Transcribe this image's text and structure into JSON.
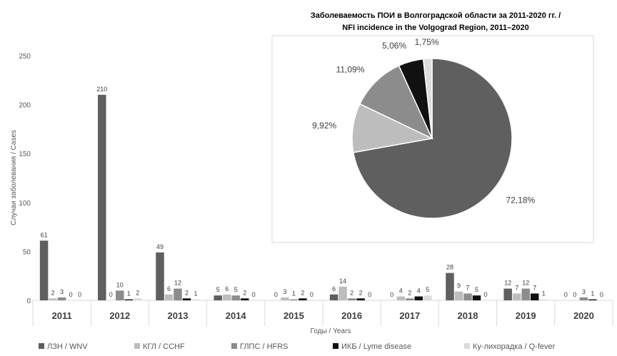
{
  "chart_data": [
    {
      "type": "bar",
      "categories": [
        "2011",
        "2012",
        "2013",
        "2014",
        "2015",
        "2016",
        "2017",
        "2018",
        "2019",
        "2020"
      ],
      "series": [
        {
          "name": "ЛЗН / WNV",
          "color": "#5f5f5f",
          "values": [
            61,
            210,
            49,
            5,
            0,
            6,
            0,
            28,
            12,
            0
          ]
        },
        {
          "name": "КГЛ / CCHF",
          "color": "#bdbdbd",
          "values": [
            2,
            0,
            6,
            6,
            3,
            14,
            4,
            9,
            7,
            0
          ]
        },
        {
          "name": "ГЛПС / HFRS",
          "color": "#8c8c8c",
          "values": [
            3,
            10,
            12,
            5,
            1,
            2,
            2,
            7,
            12,
            3
          ]
        },
        {
          "name": "ИКБ / Lyme disease",
          "color": "#111111",
          "values": [
            0,
            1,
            2,
            2,
            2,
            2,
            4,
            5,
            7,
            1
          ]
        },
        {
          "name": "Ку-лихорадка / Q-fever",
          "color": "#dcdcdc",
          "values": [
            0,
            2,
            1,
            0,
            0,
            0,
            5,
            0,
            1,
            0
          ]
        }
      ],
      "xlabel": "Годы / Years",
      "ylabel": "Случаи заболевания / Cases",
      "ylim": [
        0,
        250
      ],
      "yticks": [
        0,
        50,
        100,
        150,
        200,
        250
      ],
      "grid": false,
      "legend": "bottom"
    },
    {
      "type": "pie",
      "title": "Заболеваемость ПОИ в Волгоградской области за 2011-2020 гг. /",
      "subtitle": "NFI incidence in the Volgograd Region, 2011–2020",
      "slices": [
        {
          "series": "ЛЗН / WNV",
          "value": 72.18,
          "label": "72,18%",
          "color": "#5f5f5f"
        },
        {
          "series": "КГЛ / CCHF",
          "value": 9.92,
          "label": "9,92%",
          "color": "#bdbdbd"
        },
        {
          "series": "ГЛПС / HFRS",
          "value": 11.09,
          "label": "11,09%",
          "color": "#8c8c8c"
        },
        {
          "series": "ИКБ / Lyme disease",
          "value": 5.06,
          "label": "5,06%",
          "color": "#111111"
        },
        {
          "series": "Ку-лихорадка / Q-fever",
          "value": 1.75,
          "label": "1,75%",
          "color": "#dcdcdc"
        }
      ]
    }
  ]
}
